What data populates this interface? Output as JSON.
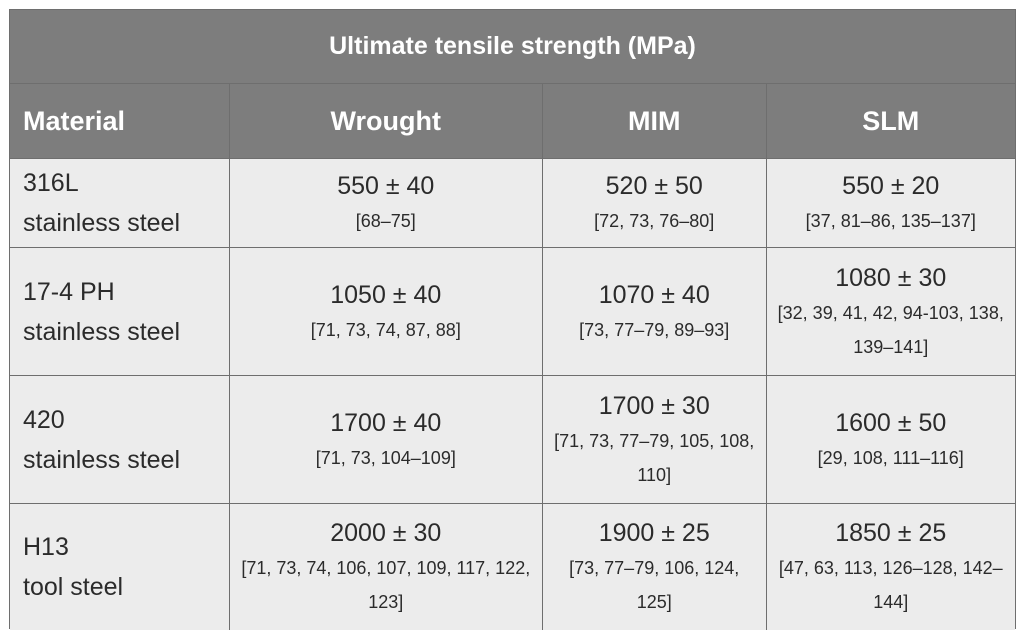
{
  "table": {
    "title": "Ultimate tensile strength (MPa)",
    "headers": [
      "Material",
      "Wrought",
      "MIM",
      "SLM"
    ],
    "rows": [
      {
        "material_line1": "316L",
        "material_line2": "stainless steel",
        "wrought": {
          "value": "550 ± 40",
          "refs": "[68–75]"
        },
        "mim": {
          "value": "520 ± 50",
          "refs": "[72, 73, 76–80]"
        },
        "slm": {
          "value": "550 ± 20",
          "refs": "[37, 81–86, 135–137]"
        }
      },
      {
        "material_line1": "17-4 PH",
        "material_line2": "stainless steel",
        "wrought": {
          "value": "1050 ± 40",
          "refs": "[71, 73, 74, 87, 88]"
        },
        "mim": {
          "value": "1070 ± 40",
          "refs": "[73, 77–79, 89–93]"
        },
        "slm": {
          "value": "1080 ± 30",
          "refs": "[32, 39, 41, 42, 94-103, 138, 139–141]"
        }
      },
      {
        "material_line1": "420",
        "material_line2": "stainless steel",
        "wrought": {
          "value": "1700 ± 40",
          "refs": "[71, 73, 104–109]"
        },
        "mim": {
          "value": "1700 ± 30",
          "refs": "[71, 73, 77–79, 105, 108, 110]"
        },
        "slm": {
          "value": "1600 ± 50",
          "refs": "[29, 108, 111–116]"
        }
      },
      {
        "material_line1": "H13",
        "material_line2": "tool steel",
        "wrought": {
          "value": "2000 ± 30",
          "refs": "[71, 73, 74, 106, 107, 109, 117, 122, 123]"
        },
        "mim": {
          "value": "1900 ± 25",
          "refs": "[73, 77–79, 106, 124, 125]"
        },
        "slm": {
          "value": "1850 ± 25",
          "refs": "[47, 63, 113, 126–128, 142–144]"
        }
      }
    ]
  },
  "colors": {
    "header_bg": "#7d7d7d",
    "header_text": "#ffffff",
    "body_bg": "#ececec",
    "body_text": "#2b2b2b",
    "border": "#6e6e6e"
  }
}
